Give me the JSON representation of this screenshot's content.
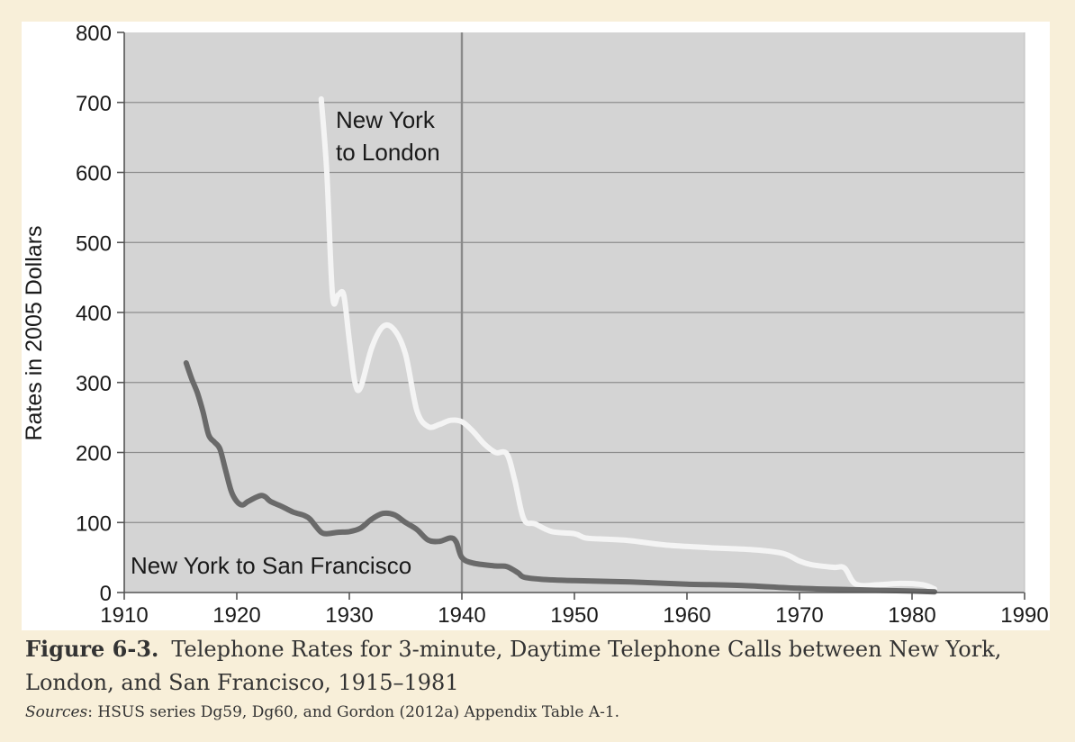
{
  "chart_data": {
    "type": "line",
    "xlabel": "",
    "ylabel": "Rates in 2005 Dollars",
    "xlim": [
      1910,
      1990
    ],
    "ylim": [
      0,
      800
    ],
    "xticks": [
      "1910",
      "1920",
      "1930",
      "1940",
      "1950",
      "1960",
      "1970",
      "1980",
      "1990"
    ],
    "yticks": [
      "0",
      "100",
      "200",
      "300",
      "400",
      "500",
      "600",
      "700",
      "800"
    ],
    "grid": "horizontal",
    "reference_line_x": 1940,
    "annotations": [
      {
        "lines": [
          "New York",
          "to London"
        ],
        "series": "London"
      },
      {
        "lines": [
          "New York to San Francisco"
        ],
        "series": "San Francisco"
      }
    ],
    "series": [
      {
        "name": "New York to London",
        "color": "#f4f4f4",
        "points": [
          [
            1927.5,
            705
          ],
          [
            1928.0,
            600
          ],
          [
            1928.5,
            425
          ],
          [
            1929.0,
            425
          ],
          [
            1929.5,
            425
          ],
          [
            1930.0,
            360
          ],
          [
            1930.5,
            300
          ],
          [
            1931.0,
            293
          ],
          [
            1932.0,
            350
          ],
          [
            1933.0,
            380
          ],
          [
            1934.0,
            375
          ],
          [
            1935.0,
            340
          ],
          [
            1936.0,
            260
          ],
          [
            1937.0,
            237
          ],
          [
            1938.0,
            240
          ],
          [
            1939.0,
            246
          ],
          [
            1940.0,
            244
          ],
          [
            1941.0,
            230
          ],
          [
            1942.0,
            212
          ],
          [
            1943.0,
            200
          ],
          [
            1944.0,
            198
          ],
          [
            1944.7,
            160
          ],
          [
            1945.5,
            105
          ],
          [
            1946.5,
            98
          ],
          [
            1948.0,
            87
          ],
          [
            1950.0,
            84
          ],
          [
            1951.0,
            78
          ],
          [
            1953.0,
            76
          ],
          [
            1955.0,
            74
          ],
          [
            1958.0,
            68
          ],
          [
            1962.0,
            64
          ],
          [
            1966.0,
            61
          ],
          [
            1968.5,
            56
          ],
          [
            1970.0,
            45
          ],
          [
            1971.0,
            40
          ],
          [
            1973.0,
            36
          ],
          [
            1974.0,
            35
          ],
          [
            1975.0,
            12
          ],
          [
            1977.0,
            11
          ],
          [
            1979.0,
            13
          ],
          [
            1981.0,
            11
          ],
          [
            1982.0,
            5
          ]
        ]
      },
      {
        "name": "New York to San Francisco",
        "color": "#6a6a6a",
        "points": [
          [
            1915.5,
            328
          ],
          [
            1916.0,
            305
          ],
          [
            1916.5,
            285
          ],
          [
            1917.0,
            258
          ],
          [
            1917.5,
            225
          ],
          [
            1918.0,
            215
          ],
          [
            1918.5,
            205
          ],
          [
            1919.0,
            175
          ],
          [
            1919.5,
            145
          ],
          [
            1920.0,
            130
          ],
          [
            1920.5,
            125
          ],
          [
            1921.0,
            130
          ],
          [
            1922.0,
            138
          ],
          [
            1922.5,
            137
          ],
          [
            1923.0,
            130
          ],
          [
            1924.0,
            123
          ],
          [
            1925.0,
            115
          ],
          [
            1926.0,
            110
          ],
          [
            1926.5,
            105
          ],
          [
            1927.0,
            95
          ],
          [
            1927.5,
            86
          ],
          [
            1928.0,
            84
          ],
          [
            1929.0,
            86
          ],
          [
            1930.0,
            87
          ],
          [
            1931.0,
            92
          ],
          [
            1932.0,
            105
          ],
          [
            1933.0,
            113
          ],
          [
            1934.0,
            111
          ],
          [
            1935.0,
            100
          ],
          [
            1936.0,
            90
          ],
          [
            1937.0,
            75
          ],
          [
            1938.0,
            73
          ],
          [
            1939.0,
            78
          ],
          [
            1939.5,
            72
          ],
          [
            1940.0,
            50
          ],
          [
            1941.0,
            42
          ],
          [
            1943.0,
            38
          ],
          [
            1944.0,
            37
          ],
          [
            1945.0,
            28
          ],
          [
            1945.5,
            22
          ],
          [
            1947.0,
            19
          ],
          [
            1950.0,
            17
          ],
          [
            1955.0,
            15
          ],
          [
            1960.0,
            12
          ],
          [
            1965.0,
            10
          ],
          [
            1970.0,
            6
          ],
          [
            1975.0,
            4
          ],
          [
            1980.0,
            2
          ],
          [
            1982.0,
            1
          ]
        ]
      }
    ]
  },
  "caption": {
    "figure_label": "Figure 6-3.",
    "text": "Telephone Rates for 3-minute, Daytime Telephone Calls between New York, London, and San Francisco, 1915–1981",
    "sources_label": "Sources",
    "sources_text": ": HSUS series Dg59, Dg60, and Gordon (2012a) Appendix Table A-1."
  }
}
